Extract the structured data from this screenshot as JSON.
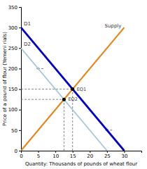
{
  "chart_data": {
    "type": "line",
    "xlabel": "Quantity: Thousands of pounds of wheat flour",
    "ylabel": "Price of a pound of flour (Yemeni rials)",
    "xlim": [
      0,
      35
    ],
    "ylim": [
      0,
      350
    ],
    "xticks": [
      0,
      5,
      10,
      15,
      20,
      25,
      30
    ],
    "yticks": [
      0,
      50,
      100,
      150,
      200,
      250,
      300,
      350
    ],
    "grid": false,
    "series": [
      {
        "name": "Supply",
        "type": "line",
        "color": "#E8851A",
        "x": [
          0,
          30
        ],
        "values": [
          0,
          300
        ]
      },
      {
        "name": "D1",
        "type": "line",
        "color": "#0000CC",
        "x": [
          0,
          30
        ],
        "values": [
          300,
          0
        ]
      },
      {
        "name": "D2",
        "type": "line",
        "color": "#A8C8D8",
        "x": [
          0,
          25
        ],
        "values": [
          250,
          0
        ]
      },
      {
        "type": "scatter",
        "marker": "circle",
        "color": "#000000",
        "x": [
          15,
          12.5
        ],
        "values": [
          150,
          125
        ],
        "labels": [
          "EQ1",
          "EQ2"
        ]
      }
    ],
    "arrows": [
      {
        "x": [
          6.5,
          4.5
        ],
        "y": 200
      },
      {
        "x": [
          26.5,
          24.5
        ],
        "y": 50
      }
    ]
  }
}
